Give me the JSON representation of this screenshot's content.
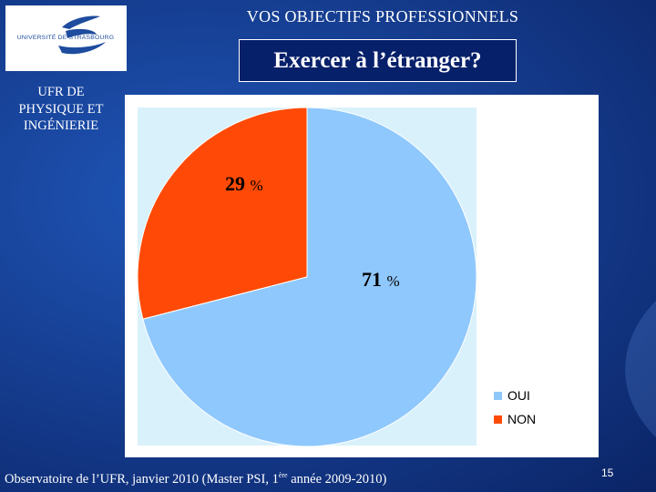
{
  "logo": {
    "text": "UNIVERSITÉ DE STRASBOURG"
  },
  "header": {
    "title": "VOS OBJECTIFS PROFESSIONNELS"
  },
  "subtitle": "Exercer à l’étranger?",
  "sidebar": {
    "ufr_lines": [
      "UFR DE",
      "PHYSIQUE ET",
      "INGÉNIERIE"
    ]
  },
  "chart_data": {
    "type": "pie",
    "title": "",
    "slices": [
      {
        "label": "OUI",
        "value": 71,
        "display_value": "71",
        "unit": "%",
        "color": "#8fc8fc"
      },
      {
        "label": "NON",
        "value": 29,
        "display_value": "29",
        "unit": "%",
        "color": "#fe4a06"
      }
    ],
    "legend_position": "bottom-right",
    "background": "#d9f1fb"
  },
  "footer": {
    "source_prefix": "Observatoire de l’UFR, janvier 2010 (Master PSI, 1",
    "source_sup": "ère",
    "source_suffix": " année 2009-2010)"
  },
  "page_number": "15"
}
